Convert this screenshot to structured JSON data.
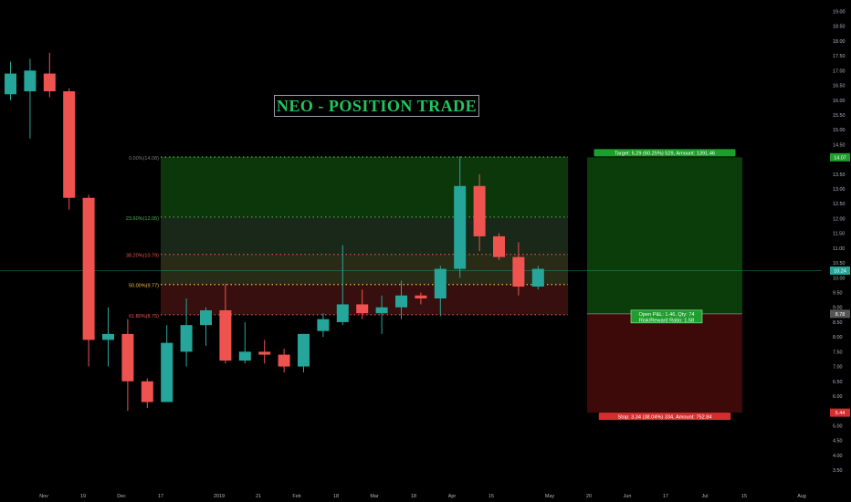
{
  "chart_data": {
    "type": "candlestick",
    "title": "NEO - POSITION TRADE",
    "y_range": [
      3.1,
      19.2
    ],
    "y_ticks": [
      "3.50",
      "4.00",
      "4.50",
      "5.00",
      "5.50",
      "6.00",
      "6.50",
      "7.00",
      "7.50",
      "8.00",
      "8.50",
      "9.00",
      "9.50",
      "10.00",
      "10.50",
      "11.00",
      "11.50",
      "12.00",
      "12.50",
      "13.00",
      "13.50",
      "14.00",
      "14.50",
      "15.00",
      "15.50",
      "16.00",
      "16.50",
      "17.00",
      "17.50",
      "18.00",
      "18.50",
      "19.00"
    ],
    "x_labels": [
      "Nov",
      "19",
      "Dec",
      "17",
      "2019",
      "21",
      "Feb",
      "18",
      "Mar",
      "18",
      "Apr",
      "15",
      "May",
      "20",
      "Jun",
      "17",
      "Jul",
      "15",
      "Aug"
    ],
    "candles": [
      {
        "o": 16.2,
        "h": 17.3,
        "l": 16.0,
        "c": 16.9
      },
      {
        "o": 16.3,
        "h": 17.4,
        "l": 14.7,
        "c": 17.0
      },
      {
        "o": 16.9,
        "h": 17.6,
        "l": 16.1,
        "c": 16.3
      },
      {
        "o": 16.3,
        "h": 16.4,
        "l": 12.3,
        "c": 12.7
      },
      {
        "o": 12.7,
        "h": 12.8,
        "l": 7.0,
        "c": 7.9
      },
      {
        "o": 7.9,
        "h": 9.0,
        "l": 7.0,
        "c": 8.1
      },
      {
        "o": 8.1,
        "h": 8.6,
        "l": 5.5,
        "c": 6.5
      },
      {
        "o": 6.5,
        "h": 6.6,
        "l": 5.6,
        "c": 5.8
      },
      {
        "o": 5.8,
        "h": 8.4,
        "l": 5.8,
        "c": 7.8
      },
      {
        "o": 7.5,
        "h": 9.3,
        "l": 7.0,
        "c": 8.4
      },
      {
        "o": 8.4,
        "h": 9.0,
        "l": 7.7,
        "c": 8.9
      },
      {
        "o": 8.9,
        "h": 9.8,
        "l": 7.1,
        "c": 7.2
      },
      {
        "o": 7.2,
        "h": 8.5,
        "l": 7.1,
        "c": 7.5
      },
      {
        "o": 7.5,
        "h": 7.9,
        "l": 7.1,
        "c": 7.4
      },
      {
        "o": 7.4,
        "h": 7.6,
        "l": 6.8,
        "c": 7.0
      },
      {
        "o": 7.0,
        "h": 8.1,
        "l": 6.8,
        "c": 8.1
      },
      {
        "o": 8.2,
        "h": 8.8,
        "l": 8.0,
        "c": 8.6
      },
      {
        "o": 8.5,
        "h": 11.1,
        "l": 8.4,
        "c": 9.1
      },
      {
        "o": 9.1,
        "h": 9.6,
        "l": 8.6,
        "c": 8.8
      },
      {
        "o": 8.8,
        "h": 9.4,
        "l": 8.1,
        "c": 9.0
      },
      {
        "o": 9.0,
        "h": 9.9,
        "l": 8.6,
        "c": 9.4
      },
      {
        "o": 9.4,
        "h": 9.5,
        "l": 9.1,
        "c": 9.3
      },
      {
        "o": 9.3,
        "h": 10.4,
        "l": 8.7,
        "c": 10.3
      },
      {
        "o": 10.3,
        "h": 14.1,
        "l": 10.0,
        "c": 13.1
      },
      {
        "o": 13.1,
        "h": 13.5,
        "l": 10.9,
        "c": 11.4
      },
      {
        "o": 11.4,
        "h": 11.5,
        "l": 10.6,
        "c": 10.7
      },
      {
        "o": 10.7,
        "h": 11.2,
        "l": 9.4,
        "c": 9.7
      },
      {
        "o": 9.7,
        "h": 10.4,
        "l": 9.6,
        "c": 10.3
      }
    ],
    "fib_levels": [
      {
        "label": "0.00%(14.08)",
        "value": 14.08
      },
      {
        "label": "23.60%(12.05)",
        "value": 12.05
      },
      {
        "label": "38.20%(10.79)",
        "value": 10.79
      },
      {
        "label": "50.00%(9.77)",
        "value": 9.77
      },
      {
        "label": "61.80%(8.75)",
        "value": 8.75
      }
    ],
    "position": {
      "entry": 8.78,
      "target": 14.07,
      "stop": 5.44,
      "target_label": "Target: 5.29 (60.25%) 529, Amount: 1391.46",
      "stop_label": "Stop: 3.34 (38.04%) 334, Amount: 752.84",
      "pnl_label_1": "Open P&L: 1.46, Qty: 74",
      "pnl_label_2": "Risk/Reward Ratio: 1.58"
    },
    "price_labels": {
      "target": "14.07",
      "current": "10.24",
      "entry": "8.78",
      "stop": "5.44"
    },
    "current_price": 10.24
  },
  "colors": {
    "up": "#26a69a",
    "down": "#ef5350",
    "target_zone": "#0b3d0b",
    "stop_zone": "#3d0909",
    "fib_green": "#4caf50",
    "fib_red": "#ef5350",
    "axis_text": "#b2b5be"
  }
}
